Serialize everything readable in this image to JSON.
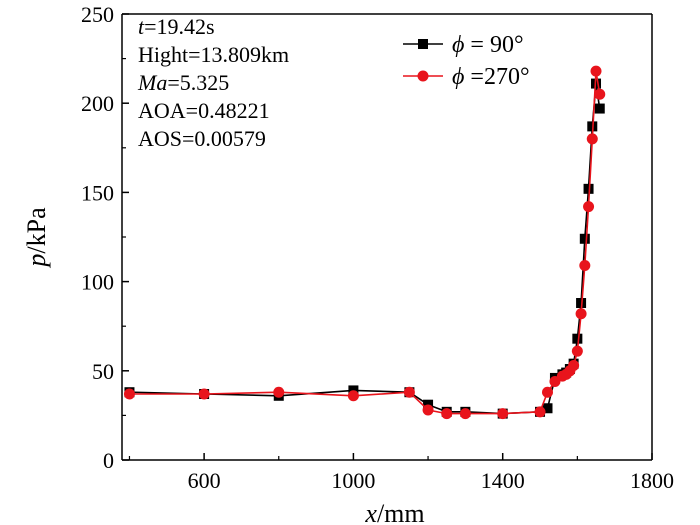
{
  "chart_data": {
    "type": "line",
    "title": "",
    "xlabel": {
      "italic": "x",
      "rest": "/mm"
    },
    "ylabel": {
      "italic": "p",
      "rest": "/kPa"
    },
    "xlim": [
      380,
      1800
    ],
    "ylim": [
      0,
      250
    ],
    "xticks": [
      600,
      1000,
      1400,
      1800
    ],
    "xtick_labels": [
      "600",
      "1000",
      "1400",
      "1800"
    ],
    "yticks": [
      0,
      50,
      100,
      150,
      200,
      250
    ],
    "ytick_labels": [
      "0",
      "50",
      "100",
      "150",
      "200",
      "250"
    ],
    "grid": false,
    "annotations": [
      {
        "italic": "t",
        "rest": "=19.42s"
      },
      {
        "italic": "",
        "rest": "Hight=13.809km"
      },
      {
        "italic": "Ma",
        "rest": "=5.325"
      },
      {
        "italic": "",
        "rest": "AOA=0.48221"
      },
      {
        "italic": "",
        "rest": "AOS=0.00579"
      }
    ],
    "legend_position": "top-right",
    "series": [
      {
        "name": "φ = 90°",
        "legend_symbol": "ϕ",
        "legend_rest": " = 90°",
        "color": "#000000",
        "marker": "square",
        "x": [
          400,
          600,
          800,
          1000,
          1150,
          1200,
          1250,
          1300,
          1400,
          1500,
          1520,
          1540,
          1560,
          1570,
          1580,
          1590,
          1600,
          1610,
          1620,
          1630,
          1640,
          1650,
          1660
        ],
        "y": [
          38,
          37,
          36,
          39,
          38,
          31,
          27,
          27,
          26,
          27,
          29,
          46,
          48,
          49,
          51,
          54,
          68,
          88,
          124,
          152,
          187,
          211,
          197
        ]
      },
      {
        "name": "φ =270°",
        "legend_symbol": "ϕ",
        "legend_rest": " =270°",
        "color": "#e8141c",
        "marker": "circle",
        "x": [
          400,
          600,
          800,
          1000,
          1150,
          1200,
          1250,
          1300,
          1400,
          1500,
          1520,
          1540,
          1560,
          1570,
          1580,
          1590,
          1600,
          1610,
          1620,
          1630,
          1640,
          1650,
          1660
        ],
        "y": [
          37,
          37,
          38,
          36,
          38,
          28,
          26,
          26,
          26,
          27,
          38,
          44,
          47,
          48,
          50,
          53,
          61,
          82,
          109,
          142,
          180,
          218,
          205
        ]
      }
    ]
  }
}
